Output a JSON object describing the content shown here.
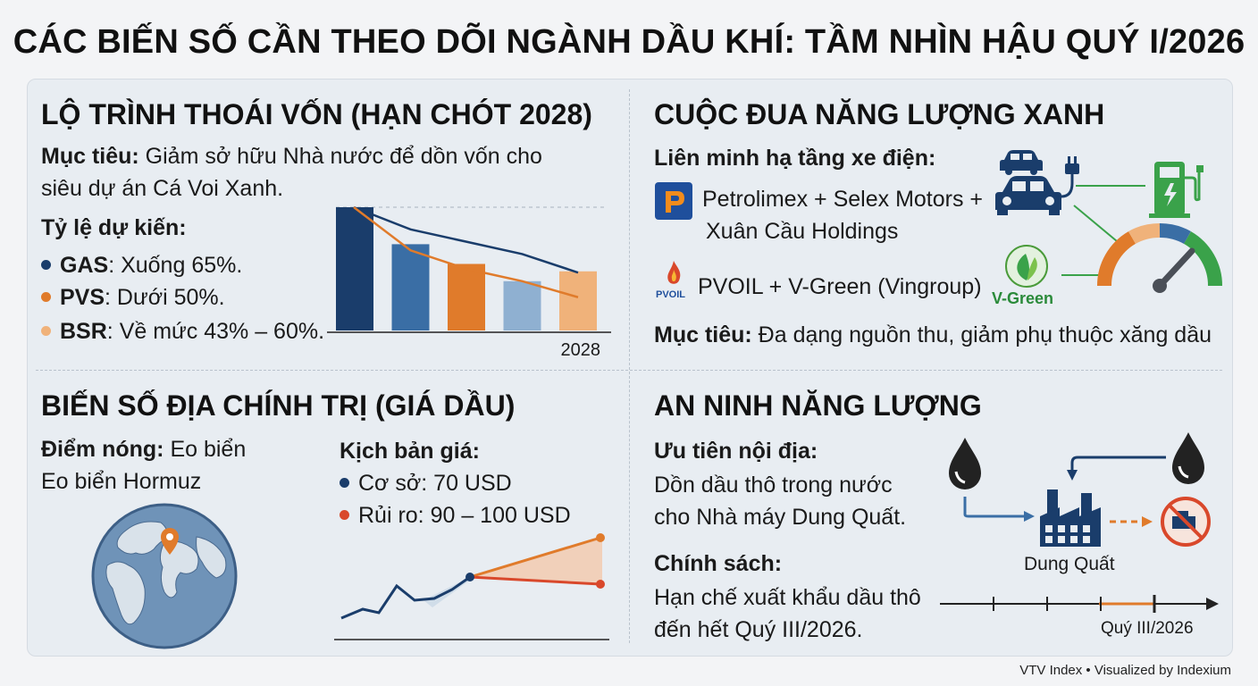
{
  "title": "CÁC BIẾN SỐ CẦN THEO DÕI NGÀNH DẦU KHÍ: TẦM NHÌN HẬU QUÝ I/2026",
  "colors": {
    "navy": "#1a3d6b",
    "blue": "#3a6ea5",
    "orange": "#e07b2b",
    "lightblue": "#8fb0d1",
    "peach": "#f0b27a",
    "green": "#3aa24a",
    "red": "#d9482b"
  },
  "divestment": {
    "heading": "LỘ TRÌNH THOÁI VỐN (HẠN CHÓT 2028)",
    "goal_label": "Mục tiêu:",
    "goal_line1": " Giảm sở hữu Nhà nước để dồn vốn cho",
    "goal_line2": "siêu dự án Cá Voi Xanh.",
    "ratio_label": "Tỷ lệ dự kiến:",
    "items": [
      {
        "code": "GAS",
        "text": ": Xuống 65%."
      },
      {
        "code": "PVS",
        "text": ": Dưới 50%."
      },
      {
        "code": "BSR",
        "text": ": Về mức 43% – 60%."
      }
    ],
    "chart_year": "2028"
  },
  "chart_data": {
    "type": "bar",
    "categories": [
      "",
      "",
      "",
      "",
      ""
    ],
    "values": [
      100,
      70,
      54,
      40,
      48
    ],
    "lines": [
      {
        "values": [
          100,
          82,
          72,
          62,
          47
        ]
      },
      {
        "values": [
          100,
          65,
          50,
          40,
          27
        ]
      }
    ],
    "ylim": [
      0,
      100
    ],
    "xlabel": "2028"
  },
  "green": {
    "heading": "CUỘC ĐUA NĂNG LƯỢNG XANH",
    "alliance_label": "Liên minh hạ tầng xe điện:",
    "alliance1_line1": "Petrolimex + Selex Motors +",
    "alliance1_line2": "Xuân Cầu Holdings",
    "alliance2": "PVOIL + V-Green (Vingroup)",
    "pvoil_logo": "PVOIL",
    "vgreen_logo": "V-Green",
    "goal_label": "Mục tiêu:",
    "goal_text": " Đa dạng nguồn thu, giảm phụ thuộc xăng dầu"
  },
  "geo": {
    "heading": "BIẾN SỐ ĐỊA CHÍNH TRỊ (GIÁ DẦU)",
    "hotspot_label": "Điểm nóng:",
    "hotspot_line1": " Eo biển",
    "hotspot_line2": "Eo biển Hormuz",
    "scenario_label": "Kịch bản giá:",
    "base": "Cơ sở: 70 USD",
    "risk": "Rủi ro: 90 – 100 USD"
  },
  "security": {
    "heading": "AN NINH NĂNG LƯỢNG",
    "priority_label": "Ưu tiên nội địa:",
    "priority_line1": "Dồn dầu thô trong nước",
    "priority_line2": "cho Nhà máy Dung Quất.",
    "policy_label": "Chính sách:",
    "policy_line1": "Hạn chế xuất khẩu dầu thô",
    "policy_line2": "đến hết Quý III/2026.",
    "plant_label": "Dung Quất",
    "timeline_label": "Quý III/2026"
  },
  "footer": "VTV Index • Visualized by Indexium"
}
